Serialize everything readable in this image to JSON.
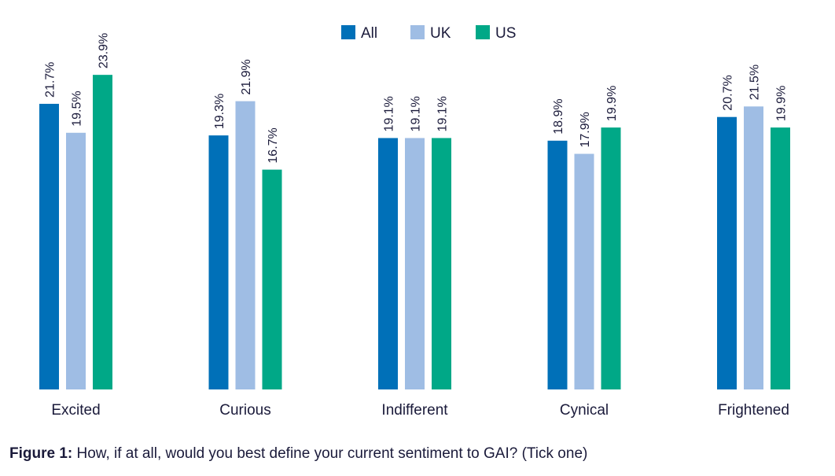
{
  "chart_data": {
    "type": "bar",
    "categories": [
      "Excited",
      "Curious",
      "Indifferent",
      "Cynical",
      "Frightened"
    ],
    "series": [
      {
        "name": "All",
        "color": "#0070b8",
        "values": [
          21.7,
          19.3,
          19.1,
          18.9,
          20.7
        ]
      },
      {
        "name": "UK",
        "color": "#9fbde4",
        "values": [
          19.5,
          21.9,
          19.1,
          17.9,
          21.5
        ]
      },
      {
        "name": "US",
        "color": "#00a887",
        "values": [
          23.9,
          16.7,
          19.1,
          19.9,
          19.9
        ]
      }
    ],
    "value_suffix": "%",
    "ylim": [
      0,
      24
    ],
    "legend": "top-center",
    "grid": false
  },
  "caption": {
    "label": "Figure 1:",
    "text": " How, if at all, would you best define your current sentiment to GAI? (Tick one)"
  }
}
